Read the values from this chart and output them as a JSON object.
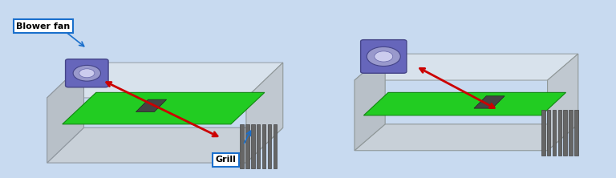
{
  "fig_width": 7.68,
  "fig_height": 2.22,
  "dpi": 100,
  "bg_gradient_top": "#b0c8e8",
  "bg_gradient_bottom": "#d8e8f5",
  "bg_color": "#c8daf0",
  "label_blower_fan": "Blower fan",
  "label_grill": "Grill",
  "box_color": "#ffffff",
  "box_edge_color": "#1a6fcc",
  "annotation_color": "#1a6fcc",
  "arrow_color": "#cc0000",
  "chassis_fill": "#d0d8e0",
  "chassis_edge": "#a0a8b0",
  "board_fill": "#22cc22",
  "board_edge": "#118811",
  "fan_fill": "#6666bb",
  "fan_edge": "#444488",
  "grill_fill": "#555555",
  "grill_edge": "#333333"
}
